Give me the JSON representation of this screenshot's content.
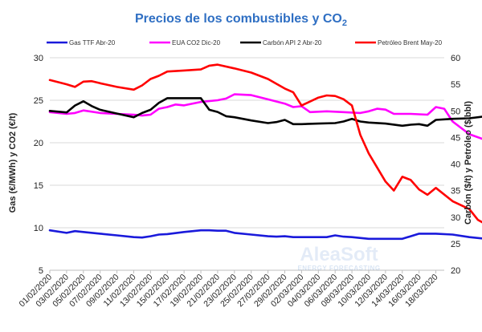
{
  "chart_data": {
    "type": "line",
    "title": "Precios de los combustibles y CO",
    "title_subscript": "2",
    "ylabel": "Gas (€/MWh) y CO2 (€/t)",
    "y2label": "Carbón ($/t) y Petróleo ($/bbl)",
    "ylim": [
      5,
      30
    ],
    "y_ticks": [
      5,
      10,
      15,
      20,
      25,
      30
    ],
    "y2lim": [
      20,
      60
    ],
    "y2_ticks": [
      20,
      25,
      30,
      35,
      40,
      45,
      50,
      55,
      60
    ],
    "grid": "horizontal",
    "legend_position": "top",
    "x_tick_labels": [
      "01/02/2020",
      "03/02/2020",
      "05/02/2020",
      "07/02/2020",
      "09/02/2020",
      "11/02/2020",
      "13/02/2020",
      "15/02/2020",
      "17/02/2020",
      "19/02/2020",
      "21/02/2020",
      "23/02/2020",
      "25/02/2020",
      "27/02/2020",
      "29/02/2020",
      "02/03/2020",
      "04/03/2020",
      "06/03/2020",
      "08/03/2020",
      "10/03/2020",
      "12/03/2020",
      "14/03/2020",
      "16/03/2020",
      "18/03/2020"
    ],
    "series": [
      {
        "name": "Gas TTF Abr-20",
        "axis": "left",
        "color": "#1A1ADB",
        "points": [
          [
            0,
            9.7
          ],
          [
            2,
            9.4
          ],
          [
            3,
            9.6
          ],
          [
            4,
            9.5
          ],
          [
            6,
            9.3
          ],
          [
            8,
            9.1
          ],
          [
            10,
            8.9
          ],
          [
            11,
            8.85
          ],
          [
            12,
            9.0
          ],
          [
            13,
            9.2
          ],
          [
            14,
            9.25
          ],
          [
            16,
            9.5
          ],
          [
            18,
            9.7
          ],
          [
            19,
            9.7
          ],
          [
            20,
            9.65
          ],
          [
            21,
            9.65
          ],
          [
            22,
            9.4
          ],
          [
            24,
            9.2
          ],
          [
            26,
            9.0
          ],
          [
            27,
            8.95
          ],
          [
            28,
            9.0
          ],
          [
            29,
            8.9
          ],
          [
            31,
            8.9
          ],
          [
            33,
            8.9
          ],
          [
            34,
            9.1
          ],
          [
            35,
            8.95
          ],
          [
            36,
            8.9
          ],
          [
            38,
            8.7
          ],
          [
            40,
            8.7
          ],
          [
            42,
            8.7
          ],
          [
            44,
            9.3
          ],
          [
            46,
            9.3
          ],
          [
            48,
            9.2
          ],
          [
            50,
            8.9
          ],
          [
            52,
            8.7
          ],
          [
            54,
            8.3
          ],
          [
            55,
            8.2
          ]
        ]
      },
      {
        "name": "EUA CO2 Dic-20",
        "axis": "left",
        "color": "#FF00FF",
        "points": [
          [
            0,
            23.6
          ],
          [
            2,
            23.4
          ],
          [
            3,
            23.5
          ],
          [
            4,
            23.8
          ],
          [
            6,
            23.5
          ],
          [
            8,
            23.4
          ],
          [
            10,
            23.3
          ],
          [
            11,
            23.2
          ],
          [
            12,
            23.3
          ],
          [
            13,
            24.0
          ],
          [
            14,
            24.2
          ],
          [
            15,
            24.5
          ],
          [
            16,
            24.4
          ],
          [
            18,
            24.8
          ],
          [
            20,
            25.0
          ],
          [
            21,
            25.2
          ],
          [
            22,
            25.7
          ],
          [
            24,
            25.6
          ],
          [
            26,
            25.1
          ],
          [
            28,
            24.6
          ],
          [
            29,
            24.2
          ],
          [
            30,
            24.3
          ],
          [
            31,
            23.6
          ],
          [
            33,
            23.7
          ],
          [
            35,
            23.6
          ],
          [
            37,
            23.5
          ],
          [
            38,
            23.7
          ],
          [
            39,
            24.0
          ],
          [
            40,
            23.9
          ],
          [
            41,
            23.4
          ],
          [
            43,
            23.4
          ],
          [
            45,
            23.3
          ],
          [
            46,
            24.2
          ],
          [
            47,
            24.0
          ],
          [
            48,
            22.5
          ],
          [
            50,
            21.0
          ],
          [
            52,
            20.3
          ],
          [
            53,
            19.3
          ],
          [
            54,
            18.4
          ],
          [
            55,
            15.4
          ]
        ]
      },
      {
        "name": "Carbón API 2 Abr-20",
        "axis": "right",
        "color": "#000000",
        "points": [
          [
            0,
            50.0
          ],
          [
            2,
            49.7
          ],
          [
            3,
            51.0
          ],
          [
            4,
            51.8
          ],
          [
            5,
            50.9
          ],
          [
            6,
            50.2
          ],
          [
            8,
            49.5
          ],
          [
            10,
            48.8
          ],
          [
            11,
            49.6
          ],
          [
            12,
            50.2
          ],
          [
            13,
            51.5
          ],
          [
            14,
            52.4
          ],
          [
            16,
            52.4
          ],
          [
            18,
            52.4
          ],
          [
            19,
            50.2
          ],
          [
            20,
            49.8
          ],
          [
            21,
            49.0
          ],
          [
            22,
            48.8
          ],
          [
            24,
            48.2
          ],
          [
            26,
            47.7
          ],
          [
            27,
            47.9
          ],
          [
            28,
            48.3
          ],
          [
            29,
            47.5
          ],
          [
            30,
            47.5
          ],
          [
            32,
            47.6
          ],
          [
            34,
            47.7
          ],
          [
            35,
            48.0
          ],
          [
            36,
            48.5
          ],
          [
            37,
            48.0
          ],
          [
            38,
            47.8
          ],
          [
            40,
            47.6
          ],
          [
            42,
            47.2
          ],
          [
            43,
            47.4
          ],
          [
            44,
            47.5
          ],
          [
            45,
            47.2
          ],
          [
            46,
            48.3
          ],
          [
            48,
            48.5
          ],
          [
            50,
            48.6
          ],
          [
            52,
            49.0
          ],
          [
            54,
            50.3
          ],
          [
            55,
            50.8
          ]
        ]
      },
      {
        "name": "Petróleo Brent May-20",
        "axis": "right",
        "color": "#FF0000",
        "points": [
          [
            0,
            55.8
          ],
          [
            2,
            55.0
          ],
          [
            3,
            54.5
          ],
          [
            4,
            55.5
          ],
          [
            5,
            55.6
          ],
          [
            6,
            55.2
          ],
          [
            8,
            54.5
          ],
          [
            10,
            54.0
          ],
          [
            11,
            54.8
          ],
          [
            12,
            56.0
          ],
          [
            13,
            56.6
          ],
          [
            14,
            57.4
          ],
          [
            16,
            57.6
          ],
          [
            18,
            57.8
          ],
          [
            19,
            58.5
          ],
          [
            20,
            58.7
          ],
          [
            22,
            58.0
          ],
          [
            24,
            57.2
          ],
          [
            26,
            56.0
          ],
          [
            27,
            55.1
          ],
          [
            28,
            54.2
          ],
          [
            29,
            53.5
          ],
          [
            30,
            51.0
          ],
          [
            32,
            52.5
          ],
          [
            33,
            52.9
          ],
          [
            34,
            52.8
          ],
          [
            35,
            52.2
          ],
          [
            36,
            51.0
          ],
          [
            37,
            45.5
          ],
          [
            38,
            42.0
          ],
          [
            40,
            36.7
          ],
          [
            41,
            35.0
          ],
          [
            42,
            37.6
          ],
          [
            43,
            37.0
          ],
          [
            44,
            35.2
          ],
          [
            45,
            34.2
          ],
          [
            46,
            35.5
          ],
          [
            48,
            33.0
          ],
          [
            50,
            31.5
          ],
          [
            51,
            29.5
          ],
          [
            52,
            28.6
          ],
          [
            53,
            27.9
          ],
          [
            54,
            25.8
          ],
          [
            55,
            24.9
          ]
        ]
      }
    ]
  },
  "watermark": {
    "brand": "AleaSoft",
    "tagline": "ENERGY FORECASTING"
  }
}
